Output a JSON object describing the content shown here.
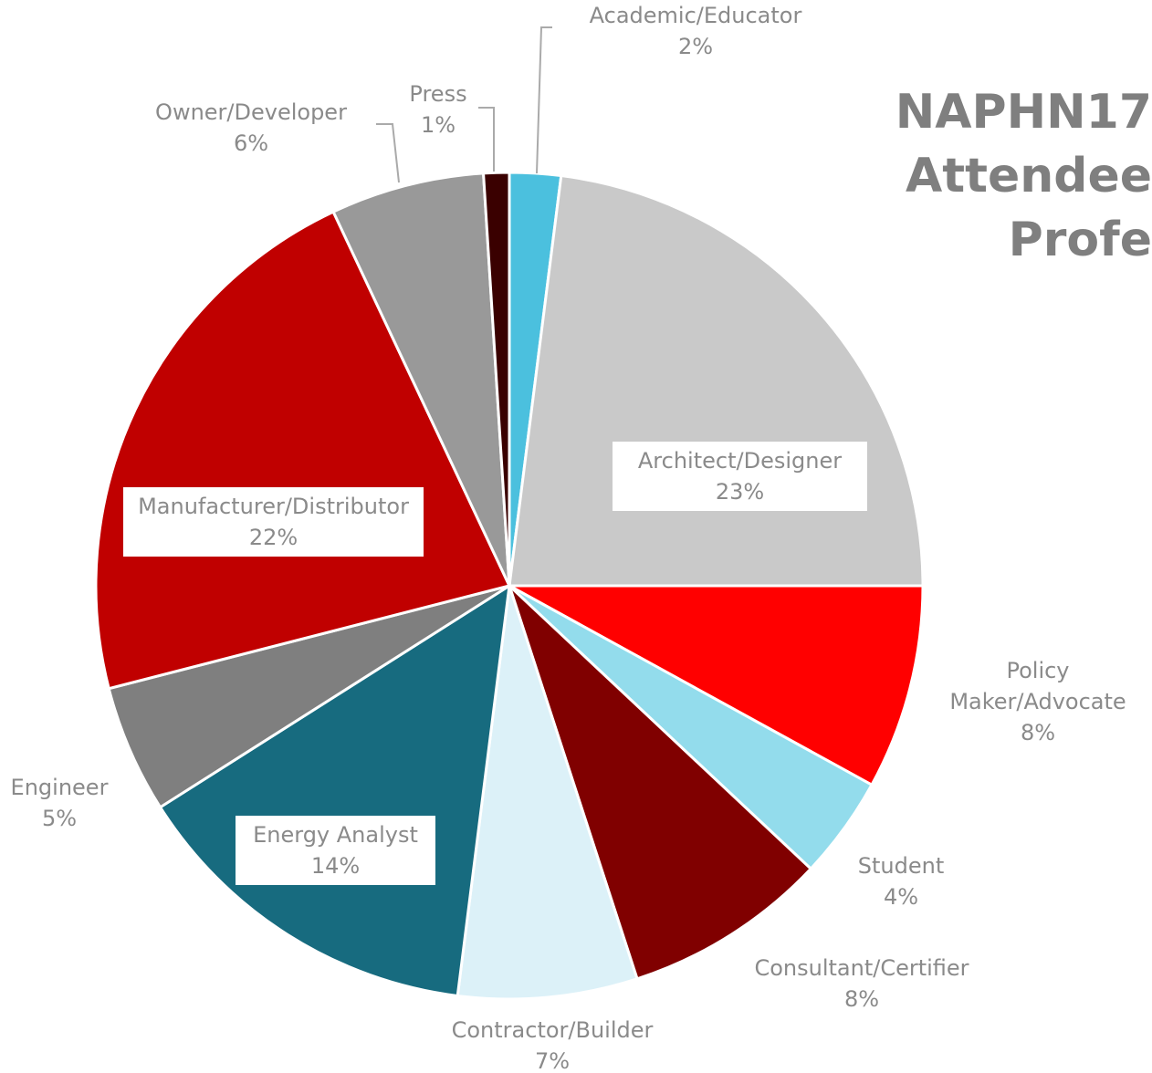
{
  "chart_data": {
    "type": "pie",
    "title": "NAPHN17 Attendee Profe",
    "categories": [
      "Academic/Educator",
      "Architect/Designer",
      "Policy Maker/Advocate",
      "Student",
      "Consultant/Certifier",
      "Contractor/Builder",
      "Energy Analyst",
      "Engineer",
      "Manufacturer/Distributor",
      "Owner/Developer",
      "Press"
    ],
    "values": [
      2,
      23,
      8,
      4,
      8,
      7,
      14,
      5,
      22,
      6,
      1
    ],
    "value_labels": [
      "2%",
      "23%",
      "8%",
      "4%",
      "8%",
      "7%",
      "14%",
      "5%",
      "22%",
      "6%",
      "1%"
    ],
    "colors": [
      "#4bc0de",
      "#c9c9c9",
      "#ff0000",
      "#93dcec",
      "#800000",
      "#dcf1f8",
      "#176b7f",
      "#7f7f7f",
      "#c00000",
      "#999999",
      "#3a0000"
    ]
  }
}
